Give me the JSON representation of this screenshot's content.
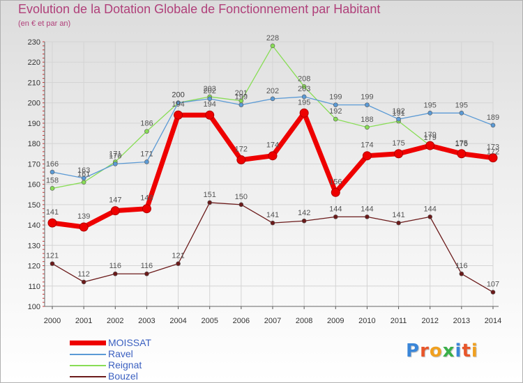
{
  "title": "Evolution de la Dotation Globale de Fonctionnement par Habitant",
  "subtitle": "(en € et par an)",
  "logo": {
    "text": "Proxiti",
    "letter_colors": [
      "#3a86d8",
      "#e8562a",
      "#f0a020",
      "#3ab04a",
      "#3a86d8",
      "#e8562a",
      "#f0a020"
    ]
  },
  "chart_data": {
    "type": "line",
    "title": "Evolution de la Dotation Globale de Fonctionnement par Habitant",
    "ylabel": "(en € et par an)",
    "xlabel": "",
    "ylim": [
      100,
      230
    ],
    "y_ticks": [
      100,
      110,
      120,
      130,
      140,
      150,
      160,
      170,
      180,
      190,
      200,
      210,
      220,
      230
    ],
    "grid": true,
    "legend_position": "bottom-left",
    "x": [
      2000,
      2001,
      2002,
      2003,
      2004,
      2005,
      2006,
      2007,
      2008,
      2009,
      2010,
      2011,
      2012,
      2013,
      2014
    ],
    "series": [
      {
        "name": "Bouzel",
        "color": "#6b1a1a",
        "values": [
          121,
          112,
          116,
          116,
          121,
          151,
          150,
          141,
          142,
          144,
          144,
          141,
          144,
          116,
          107
        ]
      },
      {
        "name": "Reignat",
        "color": "#88dd55",
        "values": [
          158,
          161,
          171,
          186,
          200,
          203,
          201,
          228,
          208,
          192,
          188,
          191,
          179,
          176,
          172
        ]
      },
      {
        "name": "Ravel",
        "color": "#5b9ad5",
        "values": [
          166,
          163,
          170,
          171,
          200,
          202,
          199,
          202,
          203,
          199,
          199,
          192,
          195,
          195,
          189
        ]
      },
      {
        "name": "MOISSAT",
        "color": "#ee0000",
        "values": [
          141,
          139,
          147,
          148,
          194,
          194,
          172,
          174,
          195,
          156,
          174,
          175,
          179,
          175,
          173
        ]
      }
    ],
    "legend_order": [
      "MOISSAT",
      "Ravel",
      "Reignat",
      "Bouzel"
    ]
  }
}
